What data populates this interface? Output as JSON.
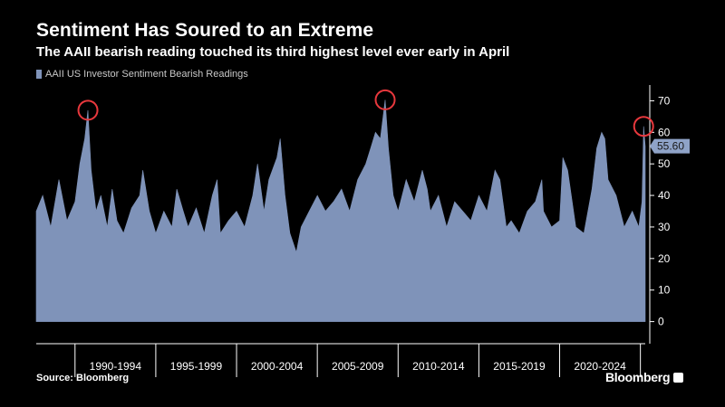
{
  "header": {
    "title": "Sentiment Has Soured to an Extreme",
    "subtitle": "The AAII bearish reading touched its third highest level ever early in April"
  },
  "legend": {
    "label": "AAII US Investor Sentiment Bearish Readings"
  },
  "footer": {
    "source": "Source: Bloomberg",
    "brand": "Bloomberg"
  },
  "colors": {
    "series": "#7f93b9",
    "highlight_circle": "#e8383d",
    "value_badge": "#8fa3c8",
    "background": "#000000",
    "axis": "#ffffff"
  },
  "chart_data": {
    "type": "area",
    "title": "Sentiment Has Soured to an Extreme",
    "subtitle": "The AAII bearish reading touched its third highest level ever early in April",
    "xlabel": "",
    "ylabel": "",
    "ylim": [
      -7,
      75
    ],
    "yticks": [
      0,
      10,
      20,
      30,
      40,
      50,
      60,
      70
    ],
    "grid": false,
    "legend_position": "top-left",
    "x_range": [
      1987.6,
      2025.3
    ],
    "period_labels": [
      "1990-1994",
      "1995-1999",
      "2000-2004",
      "2005-2009",
      "2010-2014",
      "2015-2019",
      "2020-2024"
    ],
    "period_bounds": [
      1990,
      1995,
      2000,
      2005,
      2010,
      2015,
      2020,
      2025
    ],
    "last_value_label": "55.60",
    "highlight_points": [
      {
        "x": 1990.8,
        "y": 67
      },
      {
        "x": 2009.2,
        "y": 70.3
      },
      {
        "x": 2025.2,
        "y": 61.9
      }
    ],
    "series": [
      {
        "name": "AAII US Investor Sentiment Bearish Readings",
        "x": [
          1987.6,
          1988.0,
          1988.5,
          1989.0,
          1989.5,
          1990.0,
          1990.3,
          1990.6,
          1990.8,
          1991.0,
          1991.3,
          1991.6,
          1992.0,
          1992.3,
          1992.6,
          1993.0,
          1993.5,
          1994.0,
          1994.2,
          1994.6,
          1995.0,
          1995.5,
          1996.0,
          1996.3,
          1996.7,
          1997.0,
          1997.5,
          1998.0,
          1998.5,
          1998.8,
          1999.0,
          1999.5,
          2000.0,
          2000.5,
          2001.0,
          2001.3,
          2001.7,
          2002.0,
          2002.5,
          2002.7,
          2003.0,
          2003.3,
          2003.7,
          2004.0,
          2004.5,
          2005.0,
          2005.5,
          2006.0,
          2006.5,
          2007.0,
          2007.5,
          2008.0,
          2008.3,
          2008.6,
          2008.9,
          2009.2,
          2009.4,
          2009.7,
          2010.0,
          2010.5,
          2011.0,
          2011.5,
          2011.8,
          2012.0,
          2012.5,
          2013.0,
          2013.5,
          2014.0,
          2014.5,
          2015.0,
          2015.5,
          2016.0,
          2016.3,
          2016.7,
          2017.0,
          2017.5,
          2018.0,
          2018.5,
          2018.9,
          2019.0,
          2019.5,
          2020.0,
          2020.2,
          2020.5,
          2021.0,
          2021.5,
          2022.0,
          2022.3,
          2022.6,
          2022.8,
          2023.0,
          2023.5,
          2024.0,
          2024.5,
          2024.9,
          2025.1,
          2025.2,
          2025.3
        ],
        "values": [
          35,
          40,
          30,
          45,
          32,
          38,
          50,
          58,
          67,
          48,
          35,
          40,
          30,
          42,
          32,
          28,
          36,
          40,
          48,
          35,
          28,
          35,
          30,
          42,
          35,
          30,
          36,
          28,
          40,
          45,
          28,
          32,
          35,
          30,
          40,
          50,
          35,
          45,
          52,
          58,
          40,
          28,
          22,
          30,
          35,
          40,
          35,
          38,
          42,
          35,
          45,
          50,
          55,
          60,
          58,
          70.3,
          55,
          40,
          35,
          45,
          38,
          48,
          42,
          35,
          40,
          30,
          38,
          35,
          32,
          40,
          35,
          48,
          45,
          30,
          32,
          28,
          35,
          38,
          45,
          35,
          30,
          32,
          52,
          48,
          30,
          28,
          42,
          55,
          60,
          58,
          45,
          40,
          30,
          35,
          30,
          38,
          61.9,
          55.6
        ]
      }
    ]
  }
}
